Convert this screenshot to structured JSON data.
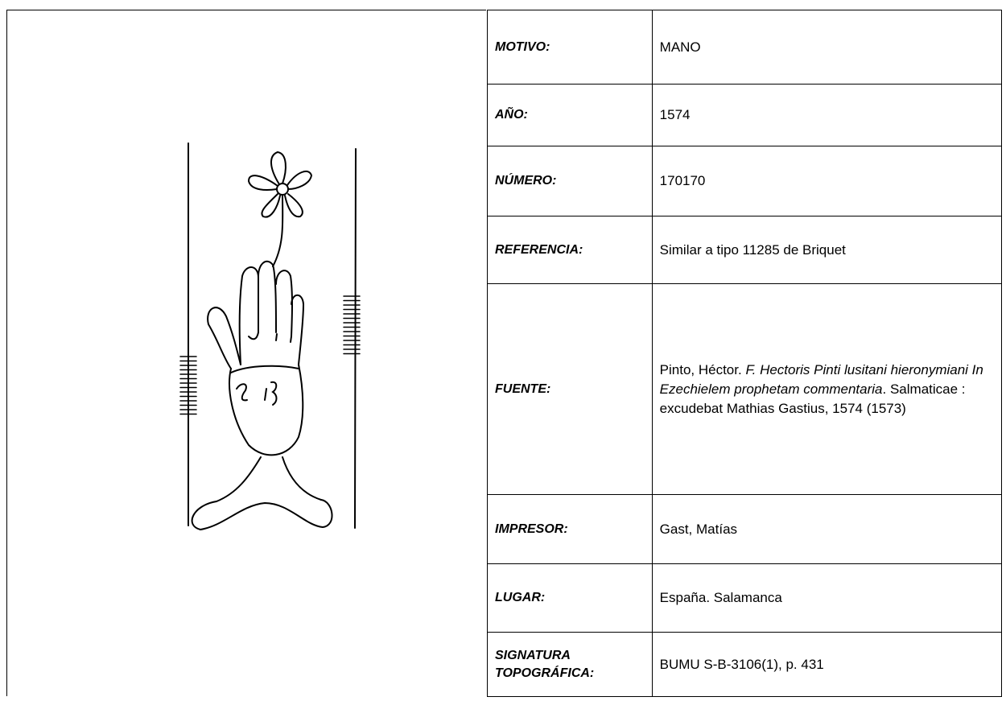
{
  "table": {
    "rows": [
      {
        "label": "MOTIVO:",
        "value": [
          "MANO"
        ]
      },
      {
        "label": "AÑO:",
        "value": [
          "1574"
        ]
      },
      {
        "label": "NÚMERO:",
        "value": [
          "170170"
        ]
      },
      {
        "label": "REFERENCIA:",
        "value": [
          "Similar a tipo 11285 de Briquet"
        ]
      },
      {
        "label": "FUENTE:",
        "value": [
          "Pinto, Héctor. ",
          "F. Hectoris Pinti lusitani hieronymiani In Ezechielem prophetam commentaria",
          ".  Salmaticae : excudebat Mathias Gastius, 1574 (1573)"
        ]
      },
      {
        "label": "IMPRESOR:",
        "value": [
          "Gast, Matías"
        ]
      },
      {
        "label": "LUGAR:",
        "value": [
          "España. Salamanca"
        ]
      },
      {
        "label": "SIGNATURA TOPOGRÁFICA:",
        "value": [
          "BUMU S-B-3106(1), p. 431"
        ]
      }
    ]
  }
}
